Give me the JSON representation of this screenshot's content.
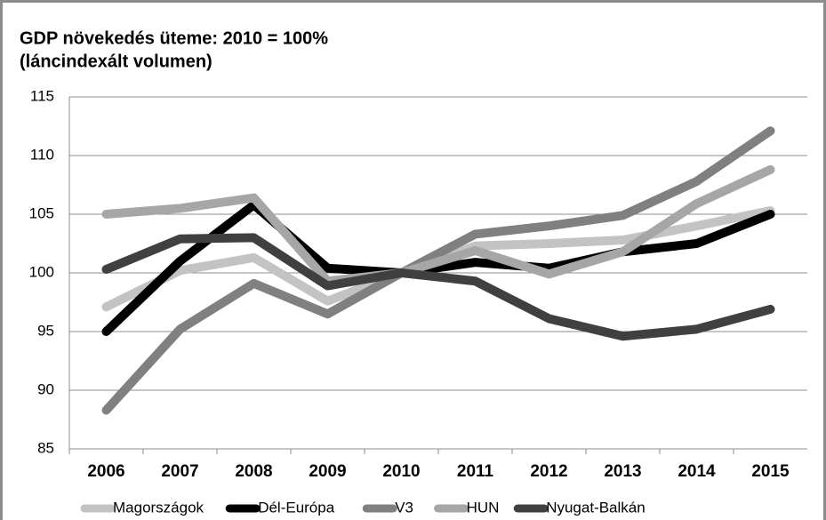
{
  "chart_data": {
    "type": "line",
    "title": "GDP növekedés üteme: 2010 = 100%",
    "subtitle": "(láncindexált volumen)",
    "categories": [
      "2006",
      "2007",
      "2008",
      "2009",
      "2010",
      "2011",
      "2012",
      "2013",
      "2014",
      "2015"
    ],
    "series": [
      {
        "name": "Magországok",
        "color": "#c3c3c3",
        "values": [
          97.1,
          100.2,
          101.3,
          97.6,
          100,
          102.3,
          102.5,
          102.8,
          104,
          105.3
        ]
      },
      {
        "name": "Dél-Európa",
        "color": "#000000",
        "values": [
          95,
          101,
          105.8,
          100.4,
          100,
          100.9,
          100.4,
          101.8,
          102.5,
          105
        ]
      },
      {
        "name": "V3",
        "color": "#808080",
        "values": [
          88.3,
          95.2,
          99.1,
          96.5,
          100,
          103.3,
          104,
          104.9,
          107.8,
          112.1
        ]
      },
      {
        "name": "HUN",
        "color": "#a6a6a6",
        "values": [
          105,
          105.5,
          106.4,
          99.3,
          100,
          101.9,
          99.9,
          101.8,
          105.9,
          108.8
        ]
      },
      {
        "name": "Nyugat-Balkán",
        "color": "#404040",
        "values": [
          100.3,
          102.9,
          103,
          98.9,
          100,
          99.3,
          96.1,
          94.6,
          95.2,
          96.9
        ]
      }
    ],
    "ylim": [
      85,
      115
    ],
    "yticks": [
      85,
      90,
      95,
      100,
      105,
      110,
      115
    ],
    "grid": true,
    "legend": "bottom"
  }
}
